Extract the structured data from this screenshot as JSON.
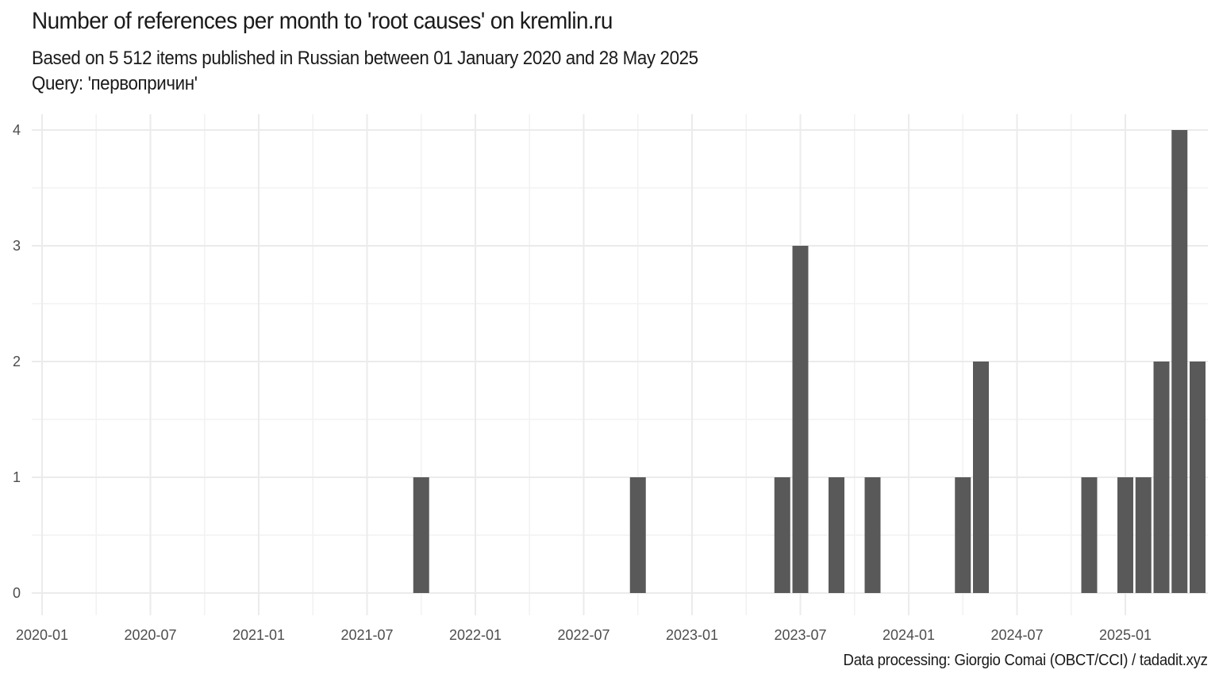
{
  "header": {
    "title": "Number of references per month to 'root causes' on kremlin.ru",
    "subtitle_line1": "Based on 5 512 items published in Russian between 01 January 2020 and 28 May 2025",
    "subtitle_line2": "Query: 'первопричин'"
  },
  "footer": {
    "caption": "Data processing: Giorgio Comai (OBCT/CCI) / tadadit.xyz"
  },
  "colors": {
    "bar": "#595959",
    "grid_major": "#ebebeb",
    "grid_minor": "#f2f2f2",
    "axis_text": "#4d4d4d"
  },
  "chart_data": {
    "type": "bar",
    "title": "Number of references per month to 'root causes' on kremlin.ru",
    "xlabel": "",
    "ylabel": "",
    "x_axis": "monthly dates",
    "x_range": [
      "2020-01",
      "2025-05"
    ],
    "xticks": [
      "2020-01",
      "2020-07",
      "2021-01",
      "2021-07",
      "2022-01",
      "2022-07",
      "2023-01",
      "2023-07",
      "2024-01",
      "2024-07",
      "2025-01"
    ],
    "yticks": [
      0,
      1,
      2,
      3,
      4
    ],
    "ylim": [
      0,
      4
    ],
    "grid": true,
    "legend": "none",
    "bars": [
      {
        "x": "2021-10",
        "y": 1
      },
      {
        "x": "2022-10",
        "y": 1
      },
      {
        "x": "2023-06",
        "y": 1
      },
      {
        "x": "2023-07",
        "y": 3
      },
      {
        "x": "2023-09",
        "y": 1
      },
      {
        "x": "2023-11",
        "y": 1
      },
      {
        "x": "2024-04",
        "y": 1
      },
      {
        "x": "2024-05",
        "y": 2
      },
      {
        "x": "2024-11",
        "y": 1
      },
      {
        "x": "2025-01",
        "y": 1
      },
      {
        "x": "2025-02",
        "y": 1
      },
      {
        "x": "2025-03",
        "y": 2
      },
      {
        "x": "2025-04",
        "y": 4
      },
      {
        "x": "2025-05",
        "y": 2
      }
    ]
  }
}
